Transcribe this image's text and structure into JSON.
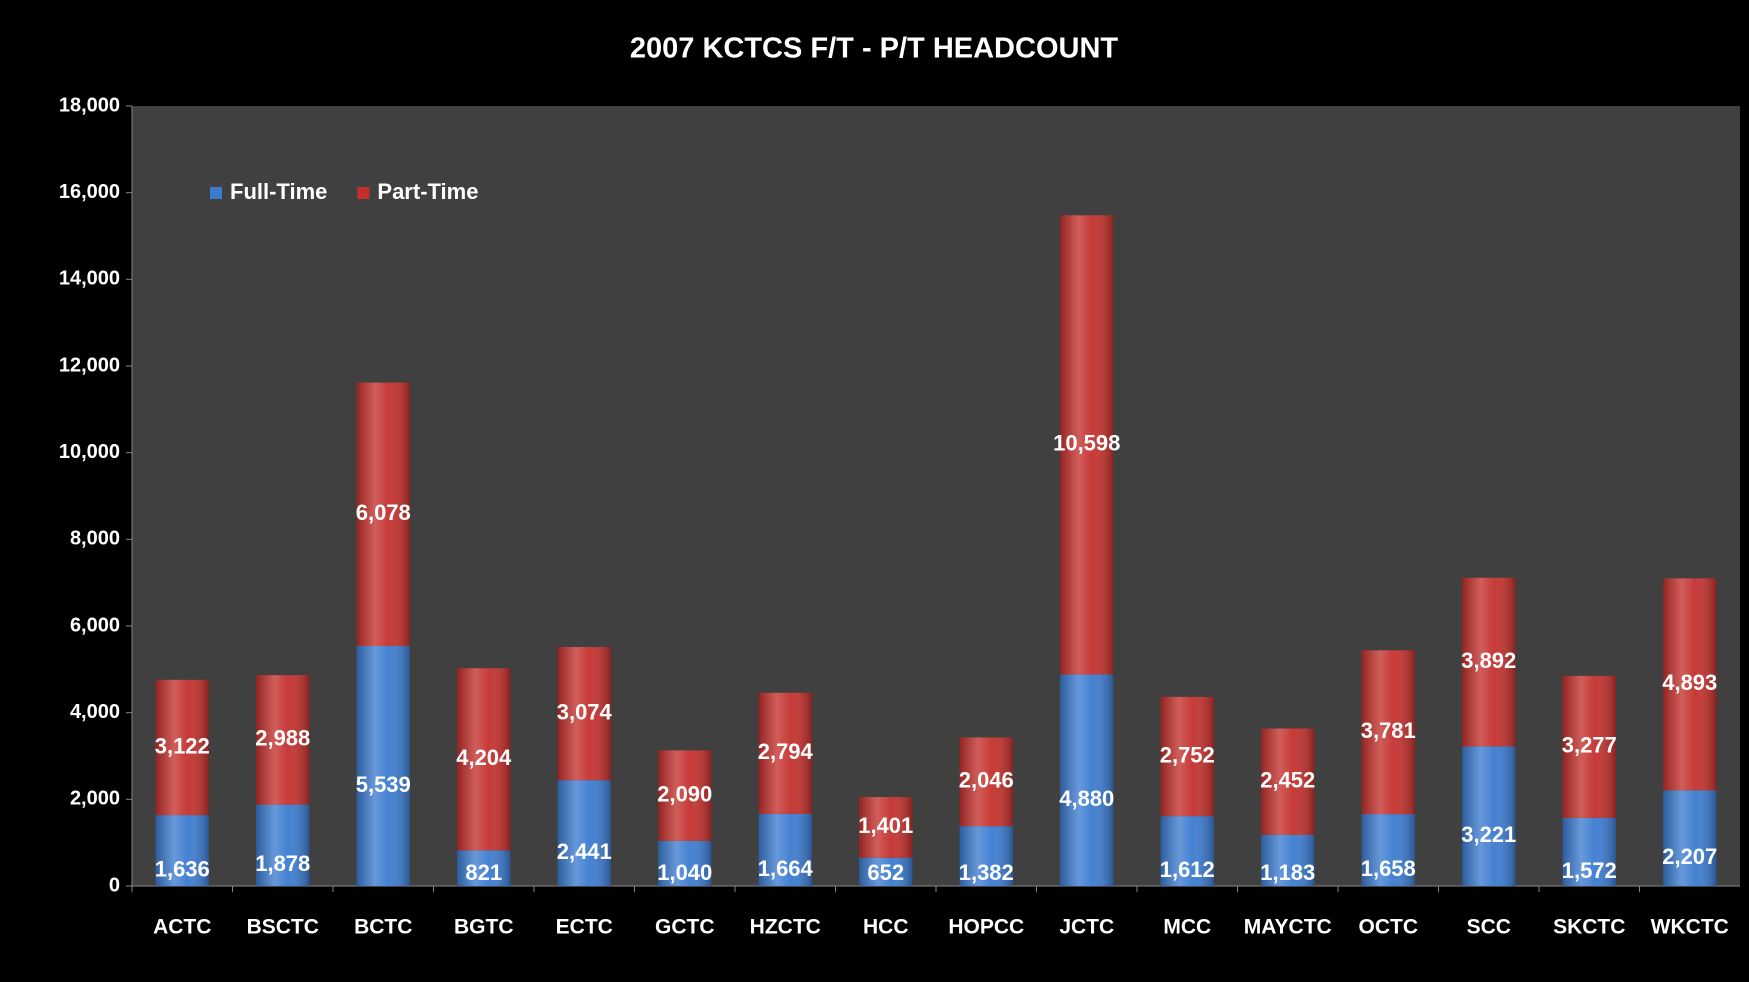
{
  "chart_data": {
    "type": "stacked_bar",
    "title": "2007 KCTCS F/T  -  P/T HEADCOUNT",
    "categories": [
      "ACTC",
      "BSCTC",
      "BCTC",
      "BGTC",
      "ECTC",
      "GCTC",
      "HZCTC",
      "HCC",
      "HOPCC",
      "JCTC",
      "MCC",
      "MAYCTC",
      "OCTC",
      "SCC",
      "SKCTC",
      "WKCTC"
    ],
    "series": [
      {
        "name": "Full-Time",
        "color": "#3b7bd0",
        "values": [
          1636,
          1878,
          5539,
          821,
          2441,
          1040,
          1664,
          652,
          1382,
          4880,
          1612,
          1183,
          1658,
          3221,
          1572,
          2207
        ],
        "value_labels": [
          "1,636",
          "1,878",
          "5,539",
          "821",
          "2,441",
          "1,040",
          "1,664",
          "652",
          "1,382",
          "4,880",
          "1,612",
          "1,183",
          "1,658",
          "3,221",
          "1,572",
          "2,207"
        ]
      },
      {
        "name": "Part-Time",
        "color": "#c3302c",
        "values": [
          3122,
          2988,
          6078,
          4204,
          3074,
          2090,
          2794,
          1401,
          2046,
          10598,
          2752,
          2452,
          3781,
          3892,
          3277,
          4893
        ],
        "value_labels": [
          "3,122",
          "2,988",
          "6,078",
          "4,204",
          "3,074",
          "2,090",
          "2,794",
          "1,401",
          "2,046",
          "10,598",
          "2,752",
          "2,452",
          "3,781",
          "3,892",
          "3,277",
          "4,893"
        ]
      }
    ],
    "ylim": [
      0,
      18000
    ],
    "yticks": [
      0,
      {
        "value": 2000,
        "label": "2,000"
      },
      {
        "value": 4000,
        "label": "4,000"
      },
      {
        "value": 6000,
        "label": "6,000"
      },
      {
        "value": 8000,
        "label": "8,000"
      },
      {
        "value": 10000,
        "label": "10,000"
      },
      {
        "value": 12000,
        "label": "12,000"
      },
      {
        "value": 14000,
        "label": "14,000"
      },
      {
        "value": 16000,
        "label": "16,000"
      },
      {
        "value": 18000,
        "label": "18,000"
      }
    ],
    "legend": "top-left"
  }
}
